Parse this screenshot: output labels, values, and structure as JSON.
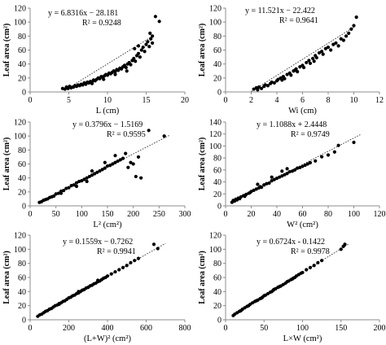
{
  "chart_data": [
    {
      "type": "scatter",
      "xlabel": "L (cm)",
      "ylabel": "Leaf area (cm²)",
      "xlim": [
        0,
        20
      ],
      "ylim": [
        0,
        120
      ],
      "xticks": [
        0,
        5,
        10,
        15,
        20
      ],
      "yticks": [
        0,
        20,
        40,
        60,
        80,
        100,
        120
      ],
      "equation": "y = 6.8316x − 28.181",
      "r2": "R² = 0.9248",
      "trend": [
        [
          4.5,
          2.56
        ],
        [
          16.0,
          81.1
        ]
      ],
      "points": [
        [
          4.2,
          5
        ],
        [
          4.5,
          4
        ],
        [
          4.7,
          7
        ],
        [
          4.9,
          5
        ],
        [
          5.1,
          8
        ],
        [
          5.3,
          6
        ],
        [
          5.6,
          7
        ],
        [
          5.8,
          9
        ],
        [
          6.0,
          8
        ],
        [
          6.2,
          10
        ],
        [
          6.4,
          9
        ],
        [
          6.6,
          11
        ],
        [
          6.8,
          10
        ],
        [
          7.0,
          13
        ],
        [
          7.2,
          11
        ],
        [
          7.4,
          14
        ],
        [
          7.6,
          13
        ],
        [
          7.8,
          15
        ],
        [
          8.0,
          14
        ],
        [
          8.2,
          17
        ],
        [
          8.4,
          16
        ],
        [
          8.6,
          18
        ],
        [
          8.8,
          20
        ],
        [
          9.0,
          19
        ],
        [
          9.2,
          22
        ],
        [
          9.4,
          21
        ],
        [
          9.6,
          23
        ],
        [
          9.8,
          25
        ],
        [
          10.0,
          24
        ],
        [
          10.2,
          27
        ],
        [
          10.4,
          26
        ],
        [
          10.6,
          28
        ],
        [
          10.8,
          30
        ],
        [
          11.0,
          29
        ],
        [
          11.2,
          32
        ],
        [
          11.4,
          31
        ],
        [
          11.6,
          34
        ],
        [
          11.8,
          33
        ],
        [
          12.0,
          36
        ],
        [
          12.2,
          38
        ],
        [
          12.4,
          35
        ],
        [
          12.6,
          40
        ],
        [
          12.8,
          42
        ],
        [
          13.0,
          39
        ],
        [
          13.2,
          45
        ],
        [
          13.4,
          48
        ],
        [
          13.6,
          44
        ],
        [
          13.8,
          52
        ],
        [
          14.0,
          55
        ],
        [
          14.2,
          50
        ],
        [
          14.4,
          60
        ],
        [
          14.6,
          64
        ],
        [
          14.8,
          58
        ],
        [
          15.0,
          68
        ],
        [
          15.2,
          72
        ],
        [
          15.4,
          65
        ],
        [
          15.6,
          76
        ],
        [
          15.8,
          70
        ],
        [
          14.0,
          66
        ],
        [
          13.5,
          62
        ],
        [
          15.5,
          84
        ],
        [
          15.8,
          80
        ],
        [
          16.2,
          108
        ],
        [
          16.7,
          101
        ],
        [
          8.0,
          12
        ],
        [
          9.5,
          18
        ],
        [
          11.0,
          25
        ],
        [
          12.5,
          30
        ]
      ]
    },
    {
      "type": "scatter",
      "xlabel": "Wi (cm)",
      "ylabel": "Leaf area (cm²)",
      "xlim": [
        0,
        12
      ],
      "ylim": [
        0,
        120
      ],
      "xticks": [
        0,
        2,
        4,
        6,
        8,
        10,
        12
      ],
      "yticks": [
        0,
        20,
        40,
        60,
        80,
        100,
        120
      ],
      "equation": "y = 11.521x − 22.422",
      "r2": "R² = 0.9641",
      "trend": [
        [
          2.0,
          0.62
        ],
        [
          10.0,
          92.8
        ]
      ],
      "points": [
        [
          2.2,
          4
        ],
        [
          2.4,
          6
        ],
        [
          2.5,
          3
        ],
        [
          2.6,
          7
        ],
        [
          2.8,
          5
        ],
        [
          3.0,
          8
        ],
        [
          3.1,
          10
        ],
        [
          3.3,
          9
        ],
        [
          3.5,
          12
        ],
        [
          3.6,
          14
        ],
        [
          3.8,
          13
        ],
        [
          4.0,
          16
        ],
        [
          4.1,
          18
        ],
        [
          4.3,
          20
        ],
        [
          4.5,
          22
        ],
        [
          4.6,
          19
        ],
        [
          4.8,
          25
        ],
        [
          5.0,
          27
        ],
        [
          5.1,
          24
        ],
        [
          5.3,
          30
        ],
        [
          5.5,
          33
        ],
        [
          5.6,
          29
        ],
        [
          5.8,
          36
        ],
        [
          6.0,
          38
        ],
        [
          6.1,
          35
        ],
        [
          6.3,
          42
        ],
        [
          6.5,
          45
        ],
        [
          6.6,
          41
        ],
        [
          6.8,
          48
        ],
        [
          7.0,
          52
        ],
        [
          7.1,
          49
        ],
        [
          7.3,
          56
        ],
        [
          7.5,
          58
        ],
        [
          7.6,
          54
        ],
        [
          7.8,
          62
        ],
        [
          8.0,
          64
        ],
        [
          8.2,
          60
        ],
        [
          8.4,
          68
        ],
        [
          8.6,
          70
        ],
        [
          8.8,
          66
        ],
        [
          9.0,
          76
        ],
        [
          9.2,
          74
        ],
        [
          9.4,
          80
        ],
        [
          9.6,
          84
        ],
        [
          9.8,
          90
        ],
        [
          10.0,
          95
        ],
        [
          10.2,
          107
        ],
        [
          5.4,
          31
        ],
        [
          4.4,
          17
        ],
        [
          6.9,
          44
        ]
      ]
    },
    {
      "type": "scatter",
      "xlabel": "L² (cm²)",
      "ylabel": "Leaf area (cm²)",
      "xlim": [
        0,
        300
      ],
      "ylim": [
        0,
        120
      ],
      "xticks": [
        0,
        50,
        100,
        150,
        200,
        250,
        300
      ],
      "yticks": [
        0,
        20,
        40,
        60,
        80,
        100,
        120
      ],
      "equation": "y = 0.3796x − 1.5169",
      "r2": "R² = 0.9595",
      "trend": [
        [
          20,
          6.08
        ],
        [
          270,
          100.98
        ]
      ],
      "points": [
        [
          18,
          5
        ],
        [
          22,
          6
        ],
        [
          26,
          8
        ],
        [
          30,
          9
        ],
        [
          34,
          10
        ],
        [
          38,
          12
        ],
        [
          42,
          13
        ],
        [
          46,
          14
        ],
        [
          50,
          17
        ],
        [
          55,
          18
        ],
        [
          60,
          21
        ],
        [
          65,
          22
        ],
        [
          70,
          25
        ],
        [
          75,
          26
        ],
        [
          80,
          29
        ],
        [
          85,
          30
        ],
        [
          90,
          33
        ],
        [
          95,
          35
        ],
        [
          100,
          36
        ],
        [
          105,
          38
        ],
        [
          110,
          40
        ],
        [
          115,
          42
        ],
        [
          120,
          44
        ],
        [
          125,
          46
        ],
        [
          130,
          48
        ],
        [
          135,
          50
        ],
        [
          140,
          52
        ],
        [
          145,
          54
        ],
        [
          150,
          57
        ],
        [
          155,
          58
        ],
        [
          160,
          60
        ],
        [
          165,
          62
        ],
        [
          170,
          64
        ],
        [
          175,
          66
        ],
        [
          180,
          68
        ],
        [
          190,
          55
        ],
        [
          195,
          62
        ],
        [
          200,
          60
        ],
        [
          205,
          42
        ],
        [
          210,
          70
        ],
        [
          215,
          40
        ],
        [
          230,
          108
        ],
        [
          260,
          100
        ],
        [
          120,
          50
        ],
        [
          145,
          62
        ],
        [
          165,
          72
        ],
        [
          185,
          75
        ],
        [
          60,
          18
        ],
        [
          90,
          28
        ],
        [
          110,
          35
        ]
      ]
    },
    {
      "type": "scatter",
      "xlabel": "W² (cm²)",
      "ylabel": "Leaf area (cm²)",
      "xlim": [
        0,
        120
      ],
      "ylim": [
        0,
        140
      ],
      "xticks": [
        0,
        20,
        40,
        60,
        80,
        100,
        120
      ],
      "yticks": [
        0,
        20,
        40,
        60,
        80,
        100,
        120,
        140
      ],
      "equation": "y = 1.1088x + 2.4448",
      "r2": "R² = 0.9749",
      "trend": [
        [
          5,
          7.99
        ],
        [
          105,
          118.87
        ]
      ],
      "points": [
        [
          5,
          6
        ],
        [
          6,
          9
        ],
        [
          7,
          8
        ],
        [
          8,
          11
        ],
        [
          9,
          10
        ],
        [
          10,
          13
        ],
        [
          11,
          12
        ],
        [
          12,
          15
        ],
        [
          14,
          17
        ],
        [
          15,
          16
        ],
        [
          16,
          19
        ],
        [
          18,
          21
        ],
        [
          19,
          22
        ],
        [
          20,
          24
        ],
        [
          22,
          26
        ],
        [
          24,
          28
        ],
        [
          26,
          30
        ],
        [
          27,
          32
        ],
        [
          28,
          31
        ],
        [
          30,
          35
        ],
        [
          32,
          37
        ],
        [
          34,
          38
        ],
        [
          36,
          42
        ],
        [
          38,
          44
        ],
        [
          40,
          46
        ],
        [
          42,
          48
        ],
        [
          44,
          50
        ],
        [
          46,
          52
        ],
        [
          48,
          54
        ],
        [
          50,
          57
        ],
        [
          52,
          58
        ],
        [
          54,
          60
        ],
        [
          56,
          63
        ],
        [
          58,
          64
        ],
        [
          60,
          66
        ],
        [
          62,
          68
        ],
        [
          64,
          70
        ],
        [
          66,
          72
        ],
        [
          70,
          75
        ],
        [
          75,
          82
        ],
        [
          80,
          85
        ],
        [
          85,
          90
        ],
        [
          88,
          101
        ],
        [
          100,
          106
        ],
        [
          36,
          48
        ],
        [
          48,
          62
        ],
        [
          25,
          36
        ],
        [
          44,
          58
        ]
      ]
    },
    {
      "type": "scatter",
      "xlabel": "(L+W)² (cm²)",
      "ylabel": "Leaf area (cm²)",
      "xlim": [
        0,
        800
      ],
      "ylim": [
        0,
        120
      ],
      "xticks": [
        0,
        200,
        400,
        600,
        800
      ],
      "yticks": [
        0,
        20,
        40,
        60,
        80,
        100,
        120
      ],
      "equation": "y = 0.1559x − 0.7262",
      "r2": "R² = 0.9941",
      "trend": [
        [
          30,
          3.95
        ],
        [
          700,
          108.4
        ]
      ],
      "points": [
        [
          40,
          5
        ],
        [
          50,
          7
        ],
        [
          60,
          8
        ],
        [
          70,
          10
        ],
        [
          80,
          12
        ],
        [
          90,
          13
        ],
        [
          100,
          15
        ],
        [
          110,
          16
        ],
        [
          120,
          18
        ],
        [
          130,
          20
        ],
        [
          140,
          21
        ],
        [
          150,
          23
        ],
        [
          160,
          24
        ],
        [
          170,
          26
        ],
        [
          180,
          27
        ],
        [
          190,
          29
        ],
        [
          200,
          31
        ],
        [
          210,
          32
        ],
        [
          220,
          34
        ],
        [
          230,
          35
        ],
        [
          240,
          37
        ],
        [
          250,
          38
        ],
        [
          260,
          40
        ],
        [
          270,
          42
        ],
        [
          280,
          43
        ],
        [
          290,
          45
        ],
        [
          300,
          46
        ],
        [
          310,
          48
        ],
        [
          320,
          49
        ],
        [
          330,
          51
        ],
        [
          340,
          52
        ],
        [
          350,
          54
        ],
        [
          360,
          55
        ],
        [
          370,
          57
        ],
        [
          380,
          59
        ],
        [
          390,
          60
        ],
        [
          400,
          62
        ],
        [
          420,
          65
        ],
        [
          440,
          68
        ],
        [
          460,
          71
        ],
        [
          480,
          74
        ],
        [
          500,
          77
        ],
        [
          520,
          81
        ],
        [
          540,
          84
        ],
        [
          560,
          87
        ],
        [
          640,
          107
        ],
        [
          660,
          101
        ],
        [
          150,
          22
        ],
        [
          250,
          40
        ],
        [
          350,
          56
        ]
      ]
    },
    {
      "type": "scatter",
      "xlabel": "L×W (cm²)",
      "ylabel": "Leaf area (cm²)",
      "xlim": [
        0,
        200
      ],
      "ylim": [
        0,
        120
      ],
      "xticks": [
        0,
        50,
        100,
        150,
        200
      ],
      "yticks": [
        0,
        20,
        40,
        60,
        80,
        100,
        120
      ],
      "equation": "y = 0.6724x - 0.1422",
      "r2": "R² = 0.9978",
      "trend": [
        [
          8,
          5.24
        ],
        [
          160,
          107.4
        ]
      ],
      "points": [
        [
          10,
          6
        ],
        [
          12,
          8
        ],
        [
          15,
          10
        ],
        [
          18,
          12
        ],
        [
          20,
          13
        ],
        [
          22,
          15
        ],
        [
          25,
          17
        ],
        [
          28,
          19
        ],
        [
          30,
          20
        ],
        [
          32,
          22
        ],
        [
          35,
          24
        ],
        [
          38,
          26
        ],
        [
          40,
          27
        ],
        [
          42,
          28
        ],
        [
          45,
          30
        ],
        [
          48,
          32
        ],
        [
          50,
          34
        ],
        [
          52,
          35
        ],
        [
          55,
          37
        ],
        [
          58,
          39
        ],
        [
          60,
          40
        ],
        [
          62,
          42
        ],
        [
          65,
          44
        ],
        [
          68,
          46
        ],
        [
          70,
          47
        ],
        [
          72,
          48
        ],
        [
          75,
          50
        ],
        [
          78,
          52
        ],
        [
          80,
          54
        ],
        [
          82,
          55
        ],
        [
          85,
          57
        ],
        [
          88,
          59
        ],
        [
          90,
          60
        ],
        [
          92,
          62
        ],
        [
          95,
          64
        ],
        [
          98,
          66
        ],
        [
          100,
          67
        ],
        [
          105,
          71
        ],
        [
          110,
          74
        ],
        [
          115,
          77
        ],
        [
          120,
          81
        ],
        [
          125,
          84
        ],
        [
          150,
          100
        ],
        [
          155,
          107
        ],
        [
          153,
          104
        ],
        [
          63,
          43
        ],
        [
          87,
          58
        ],
        [
          47,
          31
        ]
      ]
    }
  ]
}
